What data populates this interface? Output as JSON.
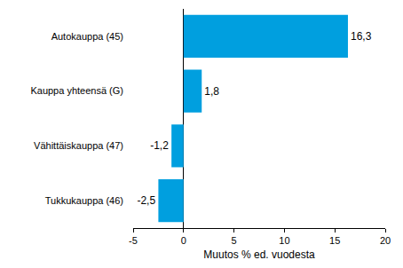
{
  "chart_data": {
    "type": "bar",
    "orientation": "horizontal",
    "categories": [
      "Autokauppa (45)",
      "Kauppa yhteensä (G)",
      "Vähittäiskauppa (47)",
      "Tukkukauppa (46)"
    ],
    "values": [
      16.3,
      1.8,
      -1.2,
      -2.5
    ],
    "value_labels": [
      "16,3",
      "1,8",
      "-1,2",
      "-2,5"
    ],
    "data_labels": true,
    "color": "#009fdf",
    "x_label": "Muutos % ed. vuodesta",
    "xlim": [
      -5,
      20
    ],
    "xticks": [
      -5,
      0,
      5,
      10,
      15,
      20
    ],
    "grid": false
  }
}
